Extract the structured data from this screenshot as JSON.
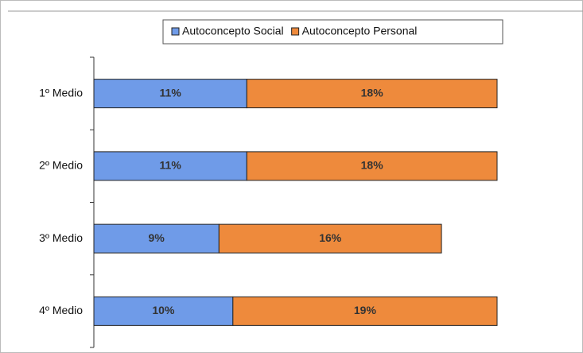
{
  "chart_data": {
    "type": "stacked-bar-horizontal",
    "categories": [
      "1º Medio",
      "2º Medio",
      "3º Medio",
      "4º Medio"
    ],
    "series": [
      {
        "name": "Autoconcepto Social",
        "color": "#6f9be8",
        "values": [
          11,
          11,
          9,
          10
        ],
        "value_labels": [
          "11%",
          "11%",
          "9%",
          "10%"
        ]
      },
      {
        "name": "Autoconcepto Personal",
        "color": "#ee8a3c",
        "values": [
          18,
          18,
          16,
          19
        ],
        "value_labels": [
          "18%",
          "18%",
          "16%",
          "19%"
        ]
      }
    ],
    "legend": "top"
  }
}
